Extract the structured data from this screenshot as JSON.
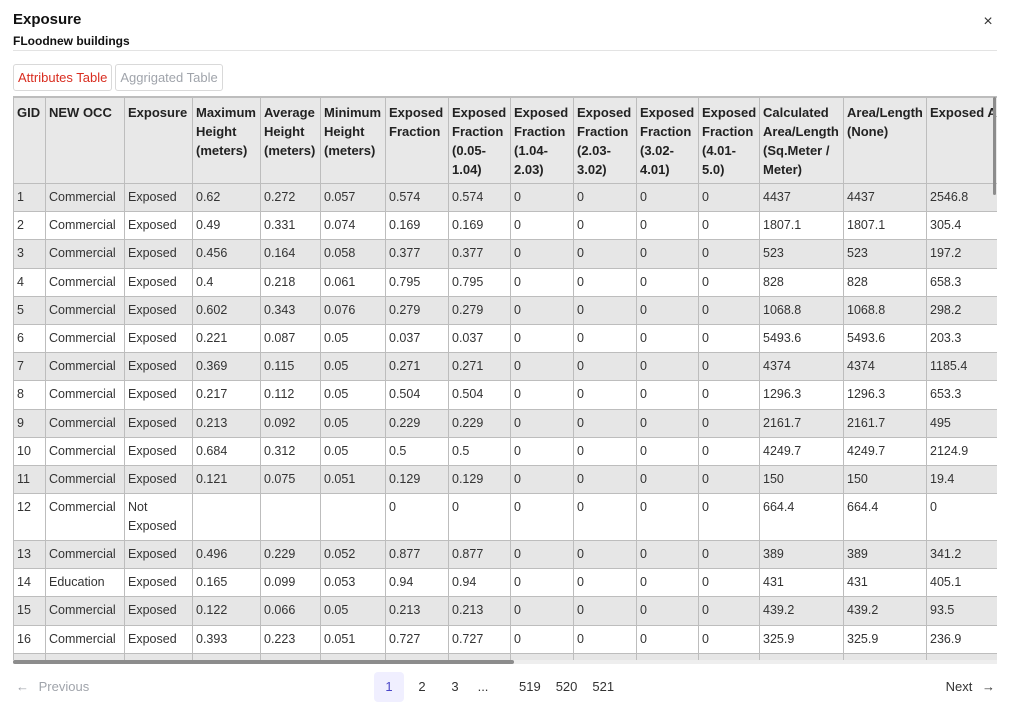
{
  "dialog": {
    "title": "Exposure",
    "subtitle": "FLoodnew buildings",
    "close_glyph": "×"
  },
  "tabs": [
    {
      "label": "Attributes Table",
      "active": true
    },
    {
      "label": "Aggrigated Table",
      "active": false
    }
  ],
  "table": {
    "columns": [
      "GID",
      "NEW OCC",
      "Exposure",
      "Maximum Height (meters)",
      "Average Height (meters)",
      "Minimum Height (meters)",
      "Exposed Fraction",
      "Exposed Fraction (0.05-1.04)",
      "Exposed Fraction (1.04-2.03)",
      "Exposed Fraction (2.03-3.02)",
      "Exposed Fraction (3.02-4.01)",
      "Exposed Fraction (4.01-5.0)",
      "Calculated Area/Length (Sq.Meter / Meter)",
      "Area/Length (None)",
      "Exposed Area/Leng"
    ],
    "rows": [
      [
        "1",
        "Commercial",
        "Exposed",
        "0.62",
        "0.272",
        "0.057",
        "0.574",
        "0.574",
        "0",
        "0",
        "0",
        "0",
        "4437",
        "4437",
        "2546.8"
      ],
      [
        "2",
        "Commercial",
        "Exposed",
        "0.49",
        "0.331",
        "0.074",
        "0.169",
        "0.169",
        "0",
        "0",
        "0",
        "0",
        "1807.1",
        "1807.1",
        "305.4"
      ],
      [
        "3",
        "Commercial",
        "Exposed",
        "0.456",
        "0.164",
        "0.058",
        "0.377",
        "0.377",
        "0",
        "0",
        "0",
        "0",
        "523",
        "523",
        "197.2"
      ],
      [
        "4",
        "Commercial",
        "Exposed",
        "0.4",
        "0.218",
        "0.061",
        "0.795",
        "0.795",
        "0",
        "0",
        "0",
        "0",
        "828",
        "828",
        "658.3"
      ],
      [
        "5",
        "Commercial",
        "Exposed",
        "0.602",
        "0.343",
        "0.076",
        "0.279",
        "0.279",
        "0",
        "0",
        "0",
        "0",
        "1068.8",
        "1068.8",
        "298.2"
      ],
      [
        "6",
        "Commercial",
        "Exposed",
        "0.221",
        "0.087",
        "0.05",
        "0.037",
        "0.037",
        "0",
        "0",
        "0",
        "0",
        "5493.6",
        "5493.6",
        "203.3"
      ],
      [
        "7",
        "Commercial",
        "Exposed",
        "0.369",
        "0.115",
        "0.05",
        "0.271",
        "0.271",
        "0",
        "0",
        "0",
        "0",
        "4374",
        "4374",
        "1185.4"
      ],
      [
        "8",
        "Commercial",
        "Exposed",
        "0.217",
        "0.112",
        "0.05",
        "0.504",
        "0.504",
        "0",
        "0",
        "0",
        "0",
        "1296.3",
        "1296.3",
        "653.3"
      ],
      [
        "9",
        "Commercial",
        "Exposed",
        "0.213",
        "0.092",
        "0.05",
        "0.229",
        "0.229",
        "0",
        "0",
        "0",
        "0",
        "2161.7",
        "2161.7",
        "495"
      ],
      [
        "10",
        "Commercial",
        "Exposed",
        "0.684",
        "0.312",
        "0.05",
        "0.5",
        "0.5",
        "0",
        "0",
        "0",
        "0",
        "4249.7",
        "4249.7",
        "2124.9"
      ],
      [
        "11",
        "Commercial",
        "Exposed",
        "0.121",
        "0.075",
        "0.051",
        "0.129",
        "0.129",
        "0",
        "0",
        "0",
        "0",
        "150",
        "150",
        "19.4"
      ],
      [
        "12",
        "Commercial",
        "Not Exposed",
        "",
        "",
        "",
        "0",
        "0",
        "0",
        "0",
        "0",
        "0",
        "664.4",
        "664.4",
        "0"
      ],
      [
        "13",
        "Commercial",
        "Exposed",
        "0.496",
        "0.229",
        "0.052",
        "0.877",
        "0.877",
        "0",
        "0",
        "0",
        "0",
        "389",
        "389",
        "341.2"
      ],
      [
        "14",
        "Education",
        "Exposed",
        "0.165",
        "0.099",
        "0.053",
        "0.94",
        "0.94",
        "0",
        "0",
        "0",
        "0",
        "431",
        "431",
        "405.1"
      ],
      [
        "15",
        "Commercial",
        "Exposed",
        "0.122",
        "0.066",
        "0.05",
        "0.213",
        "0.213",
        "0",
        "0",
        "0",
        "0",
        "439.2",
        "439.2",
        "93.5"
      ],
      [
        "16",
        "Commercial",
        "Exposed",
        "0.393",
        "0.223",
        "0.051",
        "0.727",
        "0.727",
        "0",
        "0",
        "0",
        "0",
        "325.9",
        "325.9",
        "236.9"
      ],
      [
        "",
        "",
        "",
        "",
        "",
        "",
        "",
        "",
        "",
        "",
        "",
        "",
        "",
        "",
        ""
      ]
    ]
  },
  "pagination": {
    "previous_label": "Previous",
    "next_label": "Next",
    "prev_icon": "←",
    "next_icon": "→",
    "pages": [
      "1",
      "2",
      "3",
      "...",
      "519",
      "520",
      "521"
    ],
    "current_page": "1"
  },
  "colors": {
    "active_tab": "#d92d20",
    "current_page_bg": "#f0efff",
    "current_page_text": "#4a46c8"
  }
}
